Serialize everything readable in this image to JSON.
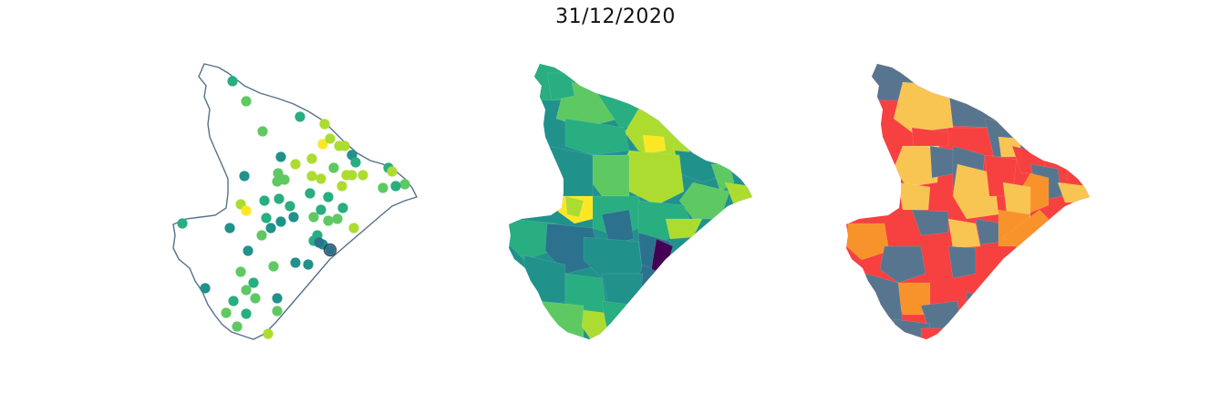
{
  "title": "31/12/2020",
  "colors": {
    "outline": "#55718a",
    "viridis": [
      "#440154",
      "#3b528b",
      "#2c728e",
      "#21918c",
      "#28ae80",
      "#5ec962",
      "#addc30",
      "#fde725"
    ],
    "categorical": {
      "slate": "#58758f",
      "gold": "#f8c553",
      "red": "#f74040",
      "orange": "#f8922a"
    }
  },
  "panels": [
    {
      "name": "point-map",
      "style": "points"
    },
    {
      "name": "choropleth-viridis",
      "style": "continuous"
    },
    {
      "name": "choropleth-categorical",
      "style": "categorical"
    }
  ]
}
